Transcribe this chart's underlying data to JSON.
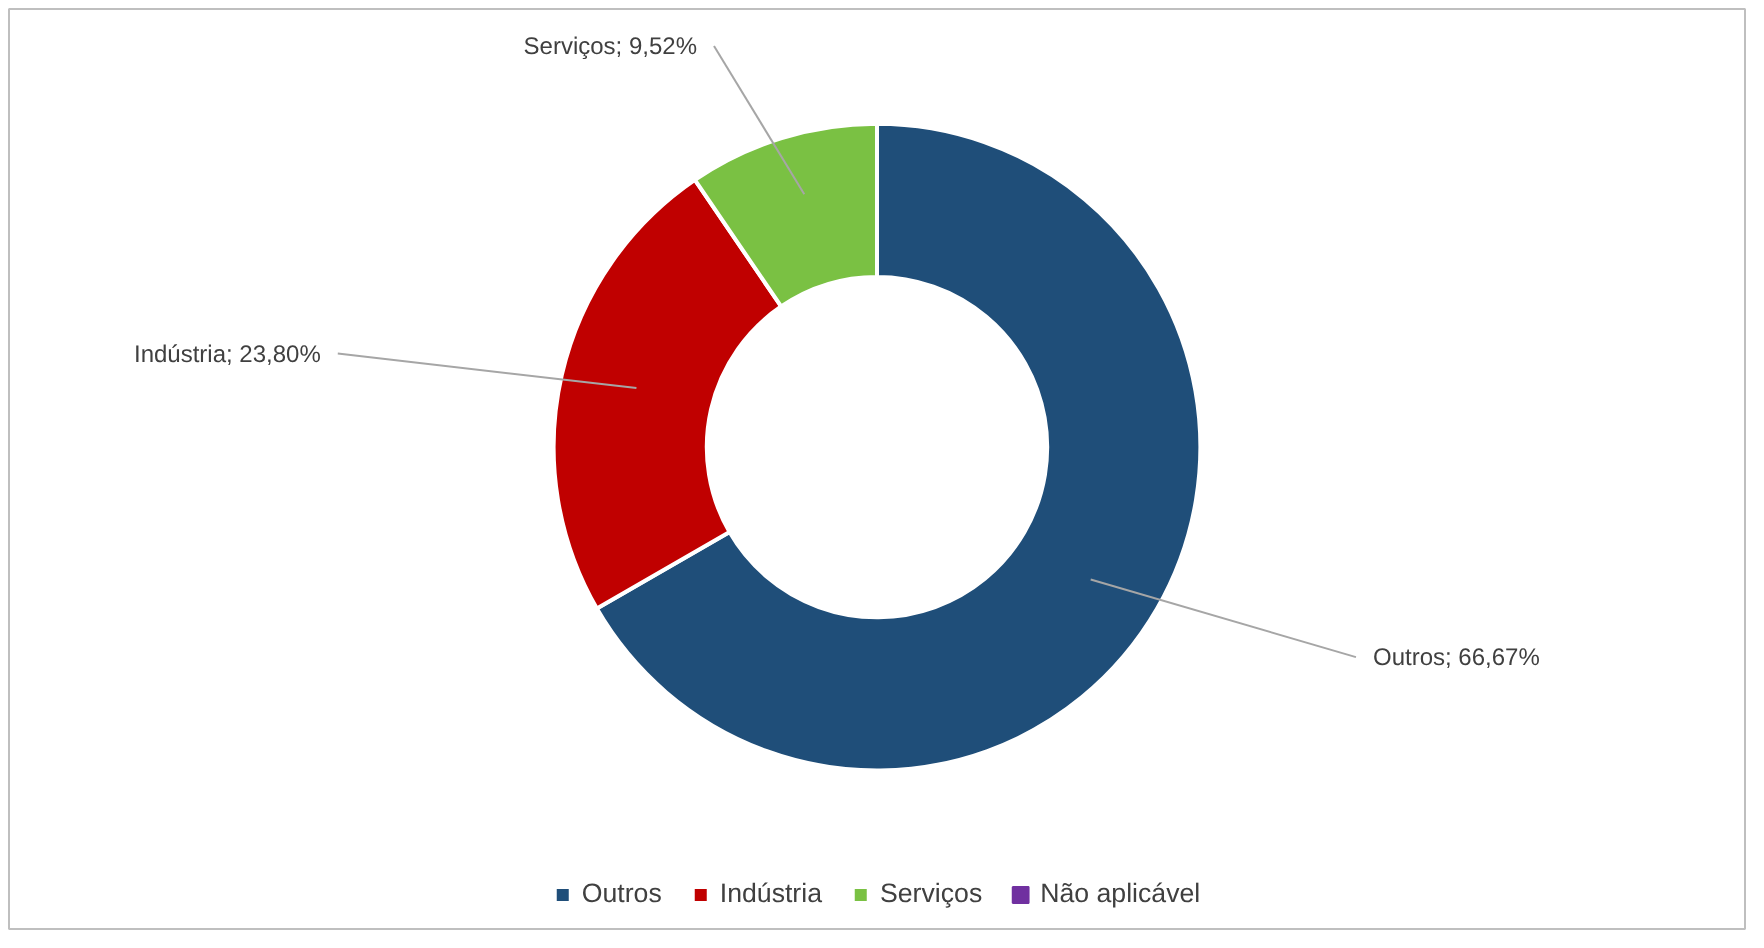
{
  "chart_data": {
    "type": "donut",
    "categories": [
      "Outros",
      "Indústria",
      "Serviços",
      "Não aplicável"
    ],
    "values": [
      66.67,
      23.8,
      9.52,
      0
    ],
    "colors": [
      "#1f4e79",
      "#c00000",
      "#7ac143",
      "#7030a0"
    ],
    "value_labels": [
      "Outros; 66,67%",
      "Indústria; 23,80%",
      "Serviços; 9,52%",
      null
    ],
    "legend": "bottom"
  }
}
